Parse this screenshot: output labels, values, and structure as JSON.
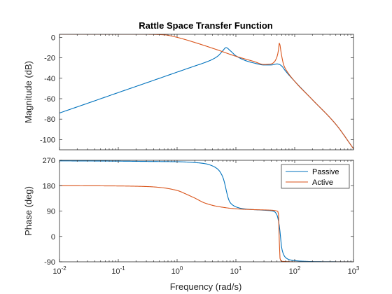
{
  "chart_data": {
    "type": "line",
    "title": "Rattle Space Transfer Function",
    "xlabel": "Frequency  (rad/s)",
    "xscale": "log",
    "xlim": [
      0.01,
      1000
    ],
    "x_ticks": [
      0.01,
      0.1,
      1,
      10,
      100,
      1000
    ],
    "x_tick_labels": [
      {
        "base": "10",
        "exp": "-2"
      },
      {
        "base": "10",
        "exp": "-1"
      },
      {
        "base": "10",
        "exp": "0"
      },
      {
        "base": "10",
        "exp": "1"
      },
      {
        "base": "10",
        "exp": "2"
      },
      {
        "base": "10",
        "exp": "3"
      }
    ],
    "grid": false,
    "legend": {
      "placement": "top-right",
      "panel": "phase"
    },
    "series_colors": {
      "Passive": "#0072BD",
      "Active": "#D95319"
    },
    "panels": [
      {
        "id": "magnitude",
        "ylabel": "Magnitude (dB)",
        "ylim": [
          -110,
          3
        ],
        "y_ticks": [
          0,
          -20,
          -40,
          -60,
          -80,
          -100
        ],
        "y_tick_labels": [
          "0",
          "-20",
          "-40",
          "-60",
          "-80",
          "-100"
        ],
        "series": [
          {
            "name": "Passive",
            "x": [
              0.01,
              0.03,
              0.1,
              0.3,
              1,
              2,
              3,
              4,
              5,
              6,
              6.8,
              8,
              10,
              15,
              20,
              30,
              40,
              50,
              55,
              60,
              70,
              100,
              200,
              500,
              1000
            ],
            "y": [
              -74,
              -64.5,
              -54,
              -44.5,
              -34,
              -28,
              -24.5,
              -21.5,
              -18,
              -13,
              -10,
              -13,
              -18,
              -23,
              -25,
              -27,
              -27,
              -26,
              -26.5,
              -28,
              -33,
              -43,
              -61,
              -85,
              -109
            ]
          },
          {
            "name": "Active",
            "x": [
              0.01,
              0.1,
              0.3,
              0.6,
              1,
              2,
              5,
              10,
              20,
              30,
              40,
              45,
              50,
              52,
              54,
              55,
              57,
              60,
              65,
              70,
              100,
              200,
              500,
              1000
            ],
            "y": [
              3,
              3,
              3,
              2.5,
              0,
              -5,
              -12.5,
              -18.5,
              -23.5,
              -26.5,
              -26,
              -24,
              -19,
              -15,
              -9,
              -4.5,
              -10,
              -18,
              -27,
              -31,
              -43,
              -61,
              -85,
              -109
            ]
          }
        ]
      },
      {
        "id": "phase",
        "ylabel": "Phase (deg)",
        "ylim": [
          -90,
          270
        ],
        "y_ticks": [
          270,
          180,
          90,
          0,
          -90
        ],
        "y_tick_labels": [
          "270",
          "180",
          "90",
          "0",
          "-90"
        ],
        "series": [
          {
            "name": "Passive",
            "x": [
              0.01,
              0.1,
              0.3,
              1,
              2,
              3,
              4,
              5,
              6,
              6.5,
              7,
              7.5,
              8,
              9,
              10,
              12,
              15,
              20,
              30,
              40,
              45,
              50,
              53,
              55,
              57,
              60,
              65,
              70,
              80,
              100,
              200,
              1000
            ],
            "y": [
              268,
              267,
              266,
              265,
              262,
              258,
              250,
              237,
              210,
              185,
              155,
              132,
              120,
              110,
              105,
              100,
              97,
              95,
              93,
              91,
              88,
              76,
              55,
              35,
              5,
              -40,
              -65,
              -75,
              -82,
              -86,
              -89,
              -90
            ]
          },
          {
            "name": "Active",
            "x": [
              0.01,
              0.1,
              0.3,
              0.5,
              1,
              1.5,
              2,
              3,
              5,
              10,
              20,
              30,
              40,
              45,
              50,
              52,
              53,
              54,
              55,
              56,
              58,
              60,
              70,
              100,
              1000
            ],
            "y": [
              180,
              179,
              177,
              174,
              163,
              148,
              136,
              118,
              106,
              98,
              95,
              94,
              93,
              92,
              90,
              88,
              80,
              40,
              -40,
              -75,
              -86,
              -88,
              -89,
              -90,
              -90
            ]
          }
        ]
      }
    ]
  }
}
